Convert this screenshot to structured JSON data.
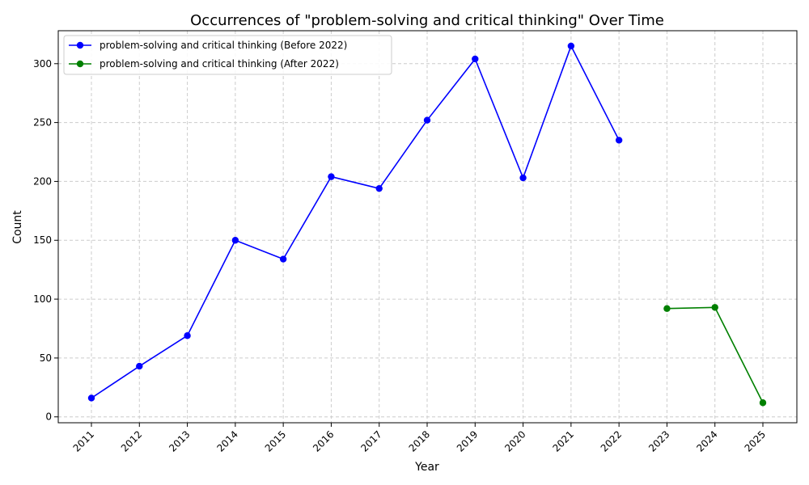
{
  "chart_data": {
    "type": "line",
    "title": "Occurrences of \"problem-solving and critical thinking\" Over Time",
    "xlabel": "Year",
    "ylabel": "Count",
    "categories": [
      "2011",
      "2012",
      "2013",
      "2014",
      "2015",
      "2016",
      "2017",
      "2018",
      "2019",
      "2020",
      "2021",
      "2022",
      "2023",
      "2024",
      "2025"
    ],
    "ylim": [
      -5,
      328
    ],
    "yticks": [
      0,
      50,
      100,
      150,
      200,
      250,
      300
    ],
    "grid": true,
    "legend_position": "top-left",
    "series": [
      {
        "name": "problem-solving and critical thinking (Before 2022)",
        "color": "#0000ff",
        "x": [
          "2011",
          "2012",
          "2013",
          "2014",
          "2015",
          "2016",
          "2017",
          "2018",
          "2019",
          "2020",
          "2021",
          "2022"
        ],
        "values": [
          16,
          43,
          69,
          150,
          134,
          204,
          194,
          252,
          304,
          203,
          315,
          235
        ]
      },
      {
        "name": "problem-solving and critical thinking (After 2022)",
        "color": "#008000",
        "x": [
          "2023",
          "2024",
          "2025"
        ],
        "values": [
          92,
          93,
          12
        ]
      }
    ]
  }
}
